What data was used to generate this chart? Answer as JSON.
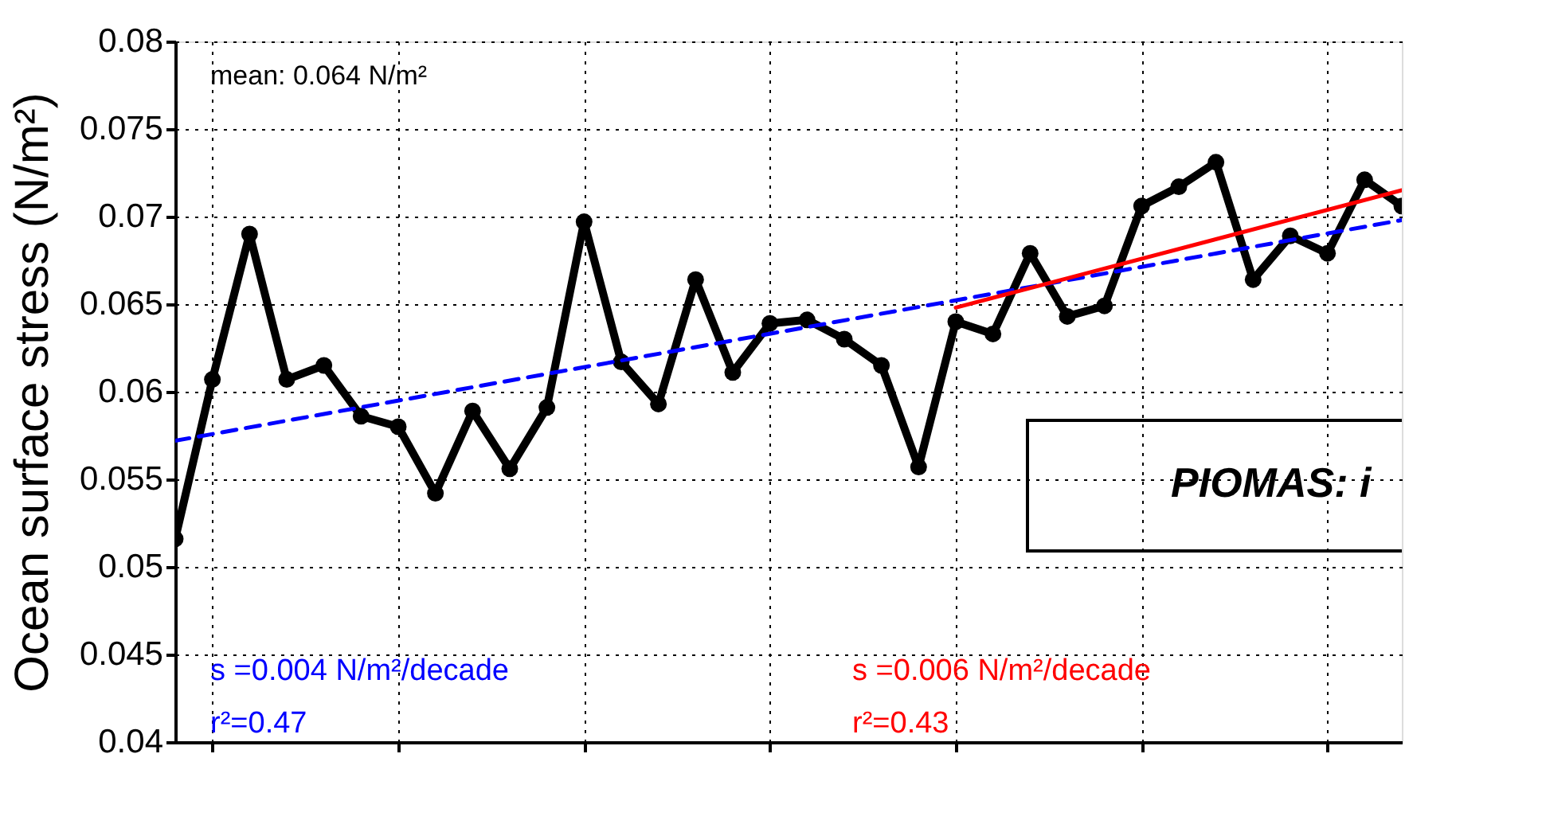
{
  "chart_data": {
    "type": "line",
    "ylabel": "Ocean surface stress (N/m²)",
    "categories": [
      null,
      null,
      null,
      null,
      null,
      null,
      null,
      null,
      null,
      null,
      null,
      null,
      null,
      null,
      null,
      null,
      null,
      null,
      null,
      null,
      null,
      null,
      null,
      null,
      null,
      null,
      null,
      null,
      null,
      null,
      null,
      null,
      null,
      null
    ],
    "series": [
      {
        "color": "#000000",
        "marker": "circle",
        "line_style": "solid",
        "values": [
          0.0516,
          0.0607,
          0.069,
          0.0607,
          0.0615,
          0.0586,
          0.058,
          0.0542,
          0.0589,
          0.0556,
          0.0591,
          0.0697,
          0.0617,
          0.0593,
          0.0664,
          0.0611,
          0.0639,
          0.0641,
          0.063,
          0.0615,
          0.0557,
          0.064,
          0.0633,
          0.0679,
          0.0643,
          0.0649,
          0.0706,
          0.0717,
          0.0731,
          0.0664,
          0.0689,
          0.0679,
          0.0721,
          0.0706
        ]
      },
      {
        "type": "line",
        "color": "#0000ff",
        "marker": "none",
        "line_style": "dashed",
        "values": [
          0.0572,
          null,
          null,
          null,
          null,
          null,
          null,
          null,
          null,
          null,
          null,
          null,
          null,
          null,
          null,
          null,
          null,
          null,
          null,
          null,
          null,
          null,
          null,
          null,
          null,
          null,
          null,
          null,
          null,
          null,
          null,
          null,
          null,
          0.0698
        ]
      },
      {
        "type": "line",
        "color": "#ff0000",
        "marker": "none",
        "line_style": "solid",
        "values": [
          null,
          null,
          null,
          null,
          null,
          null,
          null,
          null,
          null,
          null,
          null,
          null,
          null,
          null,
          null,
          null,
          null,
          null,
          null,
          null,
          null,
          0.0648,
          null,
          null,
          null,
          null,
          null,
          null,
          null,
          null,
          null,
          null,
          null,
          0.0715
        ]
      }
    ],
    "ylim": [
      0.04,
      0.08
    ],
    "yticks": [
      0.04,
      0.045,
      0.05,
      0.055,
      0.06,
      0.065,
      0.07,
      0.075,
      0.08
    ],
    "grid": true,
    "tick_labels": "y",
    "annotations": [
      "mean: 0.064 N/m²",
      "s =0.004 N/m²/decade",
      "r²=0.47",
      "s =0.006 N/m²/decade",
      "r²=0.43",
      "PIOMAS: i"
    ]
  }
}
